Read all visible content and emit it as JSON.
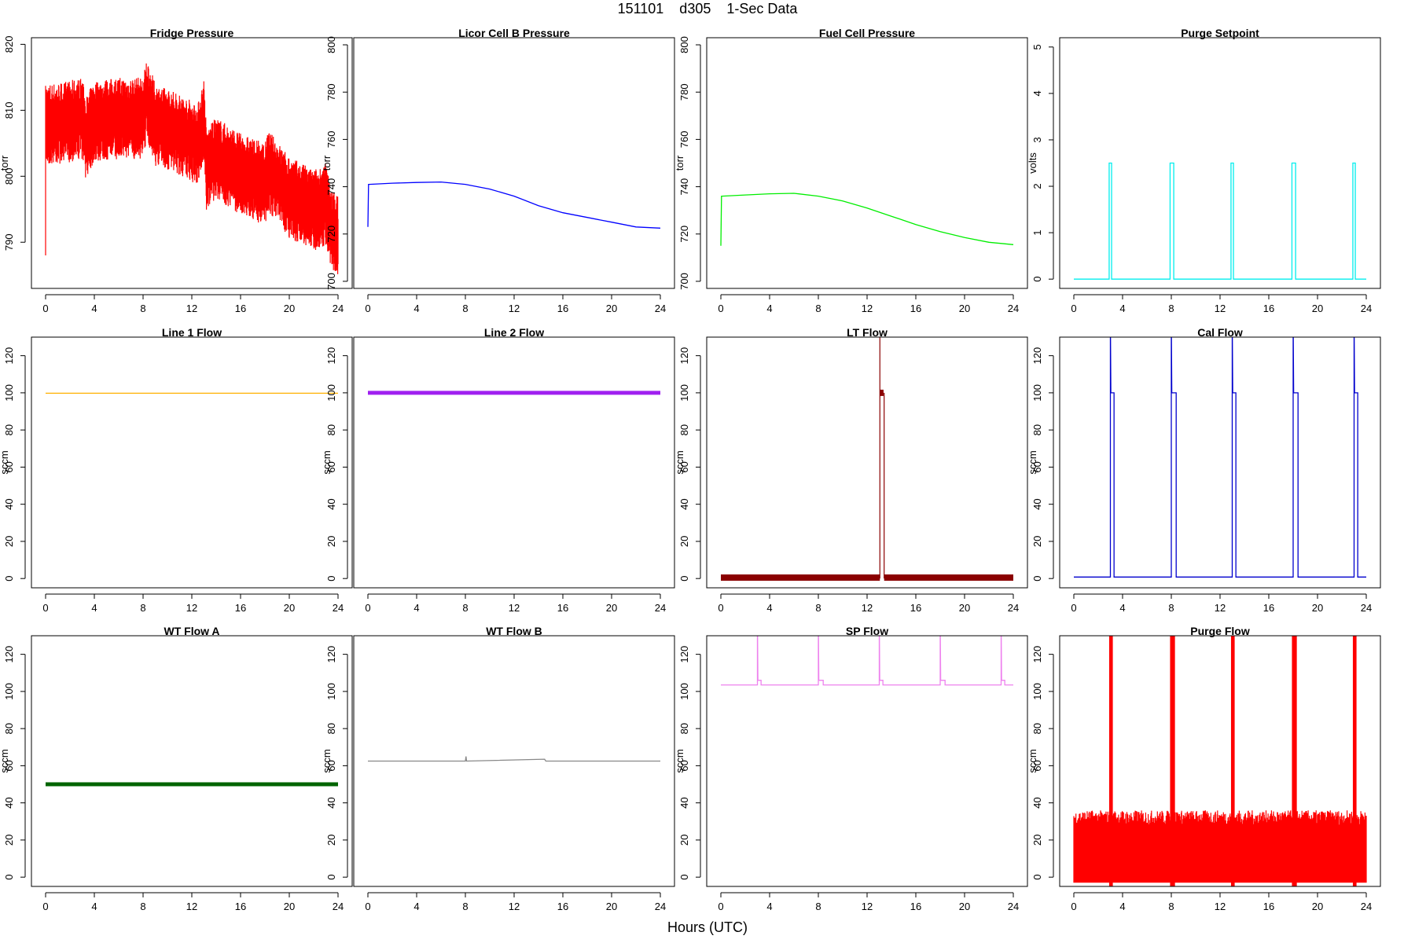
{
  "page": {
    "title": "151101    d305    1-Sec Data",
    "x_caption": "Hours (UTC)"
  },
  "chart_data": [
    {
      "type": "line",
      "title": "Fridge Pressure",
      "ylabel": "torr",
      "color": "#ff0000",
      "xlim": [
        0,
        24
      ],
      "ylim": [
        783,
        821
      ],
      "xticks": [
        0,
        4,
        8,
        12,
        16,
        20,
        24
      ],
      "yticks": [
        790,
        800,
        810,
        820
      ],
      "series": [
        {
          "style": "noisy-band",
          "x": [
            0,
            2,
            3,
            3.3,
            4,
            6,
            8,
            8.3,
            9,
            11,
            12.5,
            13,
            13.2,
            14,
            16,
            18,
            18.3,
            20,
            22,
            23,
            23.5,
            24
          ],
          "y": [
            808,
            808.5,
            809,
            806,
            808.5,
            809,
            809,
            812,
            808,
            806.5,
            805,
            809,
            801,
            803,
            800.5,
            799,
            801,
            797,
            795,
            796,
            792,
            791
          ],
          "band": 4
        }
      ],
      "annotations": [
        "start dip to 788 at hour 0"
      ]
    },
    {
      "type": "line",
      "title": "Licor Cell B Pressure",
      "ylabel": "torr",
      "color": "#0000ff",
      "xlim": [
        0,
        24
      ],
      "ylim": [
        697,
        803
      ],
      "xticks": [
        0,
        4,
        8,
        12,
        16,
        20,
        24
      ],
      "yticks": [
        700,
        720,
        740,
        760,
        780,
        800
      ],
      "series": [
        {
          "style": "line",
          "x": [
            0,
            0.05,
            0.1,
            2,
            4,
            6,
            8,
            10,
            12,
            14,
            16,
            18,
            20,
            22,
            24
          ],
          "y": [
            723,
            741,
            741,
            741.5,
            741.8,
            742,
            741,
            739,
            736,
            732,
            729,
            727,
            725,
            723,
            722.5
          ]
        }
      ]
    },
    {
      "type": "line",
      "title": "Fuel Cell Pressure",
      "ylabel": "torr",
      "color": "#00ee00",
      "xlim": [
        0,
        24
      ],
      "ylim": [
        697,
        803
      ],
      "xticks": [
        0,
        4,
        8,
        12,
        16,
        20,
        24
      ],
      "yticks": [
        700,
        720,
        740,
        760,
        780,
        800
      ],
      "series": [
        {
          "style": "line",
          "x": [
            0,
            0.05,
            0.1,
            2,
            4,
            6,
            8,
            10,
            12,
            14,
            16,
            18,
            20,
            22,
            24
          ],
          "y": [
            715,
            736,
            736,
            736.5,
            737,
            737.2,
            736,
            734,
            731,
            727.5,
            724,
            721,
            718.5,
            716.5,
            715.5
          ]
        }
      ]
    },
    {
      "type": "line",
      "title": "Purge Setpoint",
      "ylabel": "volts",
      "color": "#00eeee",
      "xlim": [
        0,
        24
      ],
      "ylim": [
        -0.2,
        5.2
      ],
      "xticks": [
        0,
        4,
        8,
        12,
        16,
        20,
        24
      ],
      "yticks": [
        0,
        1,
        2,
        3,
        4,
        5
      ],
      "series": [
        {
          "style": "pulses",
          "baseline": 0,
          "level": 2.5,
          "pulses": [
            [
              2.9,
              3.1
            ],
            [
              7.9,
              8.2
            ],
            [
              12.9,
              13.1
            ],
            [
              17.9,
              18.2
            ],
            [
              22.9,
              23.1
            ]
          ]
        }
      ]
    },
    {
      "type": "line",
      "title": "Line 1 Flow",
      "ylabel": "sccm",
      "color": "#ffb000",
      "xlim": [
        0,
        24
      ],
      "ylim": [
        -5,
        130
      ],
      "xticks": [
        0,
        4,
        8,
        12,
        16,
        20,
        24
      ],
      "yticks": [
        0,
        20,
        40,
        60,
        80,
        100,
        120
      ],
      "series": [
        {
          "style": "line",
          "x": [
            0,
            24
          ],
          "y": [
            99.8,
            99.8
          ]
        }
      ]
    },
    {
      "type": "line",
      "title": "Line 2 Flow",
      "ylabel": "sccm",
      "color": "#a020f0",
      "xlim": [
        0,
        24
      ],
      "ylim": [
        -5,
        130
      ],
      "xticks": [
        0,
        4,
        8,
        12,
        16,
        20,
        24
      ],
      "yticks": [
        0,
        20,
        40,
        60,
        80,
        100,
        120
      ],
      "series": [
        {
          "style": "thick",
          "x": [
            0,
            24
          ],
          "y": [
            100,
            100
          ]
        }
      ]
    },
    {
      "type": "line",
      "title": "LT Flow",
      "ylabel": "sccm",
      "color": "#8b0000",
      "xlim": [
        0,
        24
      ],
      "ylim": [
        -5,
        130
      ],
      "xticks": [
        0,
        4,
        8,
        12,
        16,
        20,
        24
      ],
      "yticks": [
        0,
        20,
        40,
        60,
        80,
        100,
        120
      ],
      "series": [
        {
          "style": "lt-flow",
          "baseline": 0.5,
          "spike_x": 13.05,
          "plateau": [
            13.05,
            13.35
          ],
          "plateau_y": 100,
          "end_x": 13.4
        }
      ]
    },
    {
      "type": "line",
      "title": "Cal Flow",
      "ylabel": "sccm",
      "color": "#0000cd",
      "xlim": [
        0,
        24
      ],
      "ylim": [
        -5,
        130
      ],
      "xticks": [
        0,
        4,
        8,
        12,
        16,
        20,
        24
      ],
      "yticks": [
        0,
        20,
        40,
        60,
        80,
        100,
        120
      ],
      "series": [
        {
          "style": "pulses",
          "baseline": 0.8,
          "level": 100,
          "spike": true,
          "pulses": [
            [
              3.0,
              3.3
            ],
            [
              8.0,
              8.4
            ],
            [
              13.0,
              13.3
            ],
            [
              18.0,
              18.4
            ],
            [
              23.0,
              23.3
            ]
          ]
        }
      ]
    },
    {
      "type": "line",
      "title": "WT Flow A",
      "ylabel": "sccm",
      "color": "#006400",
      "xlim": [
        0,
        24
      ],
      "ylim": [
        -5,
        130
      ],
      "xticks": [
        0,
        4,
        8,
        12,
        16,
        20,
        24
      ],
      "yticks": [
        0,
        20,
        40,
        60,
        80,
        100,
        120
      ],
      "series": [
        {
          "style": "thick",
          "x": [
            0,
            24
          ],
          "y": [
            50,
            50
          ]
        }
      ]
    },
    {
      "type": "line",
      "title": "WT Flow B",
      "ylabel": "sccm",
      "color": "#888888",
      "xlim": [
        0,
        24
      ],
      "ylim": [
        -5,
        130
      ],
      "xticks": [
        0,
        4,
        8,
        12,
        16,
        20,
        24
      ],
      "yticks": [
        0,
        20,
        40,
        60,
        80,
        100,
        120
      ],
      "series": [
        {
          "style": "line",
          "x": [
            0,
            8,
            8.05,
            8.1,
            14.5,
            14.6,
            24
          ],
          "y": [
            62.5,
            62.5,
            65,
            62.5,
            63.5,
            62.5,
            62.5
          ]
        }
      ]
    },
    {
      "type": "line",
      "title": "SP Flow",
      "ylabel": "sccm",
      "color": "#ee82ee",
      "xlim": [
        0,
        24
      ],
      "ylim": [
        -5,
        130
      ],
      "xticks": [
        0,
        4,
        8,
        12,
        16,
        20,
        24
      ],
      "yticks": [
        0,
        20,
        40,
        60,
        80,
        100,
        120
      ],
      "series": [
        {
          "style": "pulses",
          "baseline": 103.5,
          "level": 106,
          "spike": true,
          "pulses": [
            [
              3.0,
              3.3
            ],
            [
              8.0,
              8.4
            ],
            [
              13.0,
              13.3
            ],
            [
              18.0,
              18.4
            ],
            [
              23.0,
              23.3
            ]
          ]
        }
      ]
    },
    {
      "type": "line",
      "title": "Purge Flow",
      "ylabel": "sccm",
      "color": "#ff0000",
      "xlim": [
        0,
        24
      ],
      "ylim": [
        -5,
        130
      ],
      "xticks": [
        0,
        4,
        8,
        12,
        16,
        20,
        24
      ],
      "yticks": [
        0,
        20,
        40,
        60,
        80,
        100,
        120
      ],
      "series": [
        {
          "style": "noise-fill",
          "base": -3,
          "top": 32,
          "pulses": [
            [
              2.9,
              3.2
            ],
            [
              7.9,
              8.3
            ],
            [
              12.9,
              13.2
            ],
            [
              17.9,
              18.3
            ],
            [
              22.9,
              23.2
            ]
          ]
        }
      ]
    }
  ]
}
